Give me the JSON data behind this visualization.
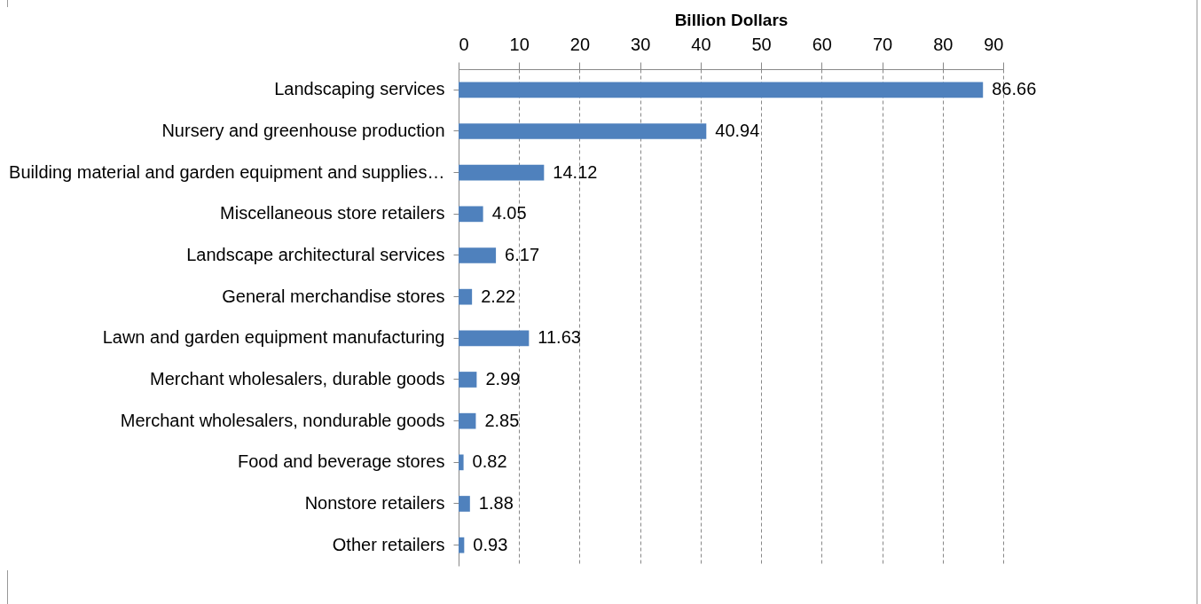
{
  "chart_data": {
    "type": "bar",
    "orientation": "horizontal",
    "xlabel": "Billion Dollars",
    "categories": [
      "Landscaping services",
      "Nursery and greenhouse production",
      "Building material and garden equipment and supplies…",
      "Miscellaneous store retailers",
      "Landscape architectural services",
      "General merchandise stores",
      "Lawn and garden equipment manufacturing",
      "Merchant wholesalers, durable goods",
      "Merchant wholesalers, nondurable goods",
      "Food and beverage stores",
      "Nonstore retailers",
      "Other retailers"
    ],
    "values": [
      86.66,
      40.94,
      14.12,
      4.05,
      6.17,
      2.22,
      11.63,
      2.99,
      2.85,
      0.82,
      1.88,
      0.93
    ],
    "color": "#4f81bd",
    "xlim": [
      0,
      90
    ],
    "xticks": [
      0,
      10,
      20,
      30,
      40,
      50,
      60,
      70,
      80,
      90
    ],
    "grid": "x",
    "data_labels": true
  }
}
